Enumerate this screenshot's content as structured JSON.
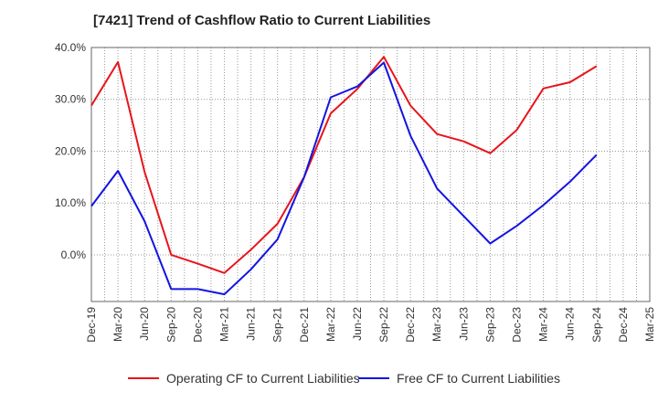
{
  "chart_data": {
    "type": "line",
    "title": "[7421]  Trend of Cashflow Ratio to Current Liabilities",
    "x": [
      "Dec-19",
      "Mar-20",
      "Jun-20",
      "Sep-20",
      "Dec-20",
      "Mar-21",
      "Jun-21",
      "Sep-21",
      "Dec-21",
      "Mar-22",
      "Jun-22",
      "Sep-22",
      "Dec-22",
      "Mar-23",
      "Jun-23",
      "Sep-23",
      "Dec-23",
      "Mar-24",
      "Jun-24",
      "Sep-24",
      "Dec-24",
      "Mar-25"
    ],
    "y_ticks": [
      "40.0%",
      "30.0%",
      "20.0%",
      "10.0%",
      "0.0%"
    ],
    "ylim": [
      -9,
      40
    ],
    "grid": true,
    "legend_position": "bottom",
    "series": [
      {
        "name": "Operating CF to Current Liabilities",
        "color": "#e8141c",
        "values": [
          28.8,
          37.2,
          16.0,
          0.0,
          -1.7,
          -3.5,
          1.0,
          6.0,
          15.0,
          27.3,
          32.0,
          38.2,
          28.8,
          23.3,
          21.9,
          19.6,
          24.1,
          32.1,
          33.3,
          36.4,
          null,
          null
        ]
      },
      {
        "name": "Free CF to Current Liabilities",
        "color": "#1414e0",
        "values": [
          9.4,
          16.2,
          6.5,
          -6.6,
          -6.6,
          -7.6,
          -2.8,
          3.0,
          15.0,
          30.4,
          32.5,
          37.1,
          23.0,
          12.8,
          7.5,
          2.2,
          5.6,
          9.6,
          14.1,
          19.3,
          null,
          null
        ]
      }
    ]
  }
}
